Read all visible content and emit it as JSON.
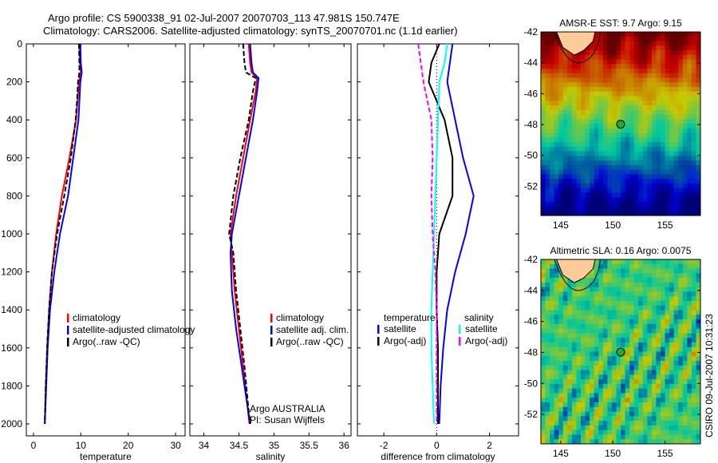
{
  "title_line1": "Argo profile: CS 5900338_91 02-Jul-2007 20070703_113 47.981S 150.747E",
  "title_line2": "Climatology: CARS2006. Satellite-adjusted climatology: synTS_20070701.nc (1.1d earlier)",
  "side_stamp": "CSIRO 09-Jul-2007 10:31:23",
  "argo_note": [
    "Argo AUSTRALIA",
    "PI: Susan Wijffels"
  ],
  "colors": {
    "red": "#ff0000",
    "blue": "#0000ff",
    "black": "#000000",
    "cyan": "#00ffff",
    "magenta": "#ff00ff",
    "land": "#ffcc99"
  },
  "chart_data": [
    {
      "type": "line",
      "xlabel": "temperature",
      "ylabel": "",
      "xlim": [
        -1.5,
        32
      ],
      "ylim": [
        2000,
        0
      ],
      "xticks": [
        0,
        10,
        20,
        30
      ],
      "yticks": [
        0,
        200,
        400,
        600,
        800,
        1000,
        1200,
        1400,
        1600,
        1800,
        2000
      ],
      "legend": [
        "climatology",
        "satellite-adjusted climatology",
        "Argo(..raw -QC)"
      ],
      "depth": [
        0,
        100,
        150,
        200,
        300,
        400,
        600,
        800,
        1000,
        1200,
        1400,
        1600,
        1800,
        2000
      ],
      "series": [
        {
          "name": "climatology",
          "color": "red",
          "values": [
            9.7,
            9.8,
            10.0,
            9.6,
            9.3,
            9.0,
            7.6,
            6.0,
            4.8,
            3.9,
            3.3,
            2.9,
            2.6,
            2.4
          ]
        },
        {
          "name": "satellite-adjusted climatology",
          "color": "blue",
          "values": [
            9.9,
            10.0,
            10.2,
            9.9,
            9.7,
            9.5,
            8.4,
            7.3,
            5.6,
            4.4,
            3.5,
            3.0,
            2.7,
            2.4
          ]
        },
        {
          "name": "Argo(..raw -QC)",
          "color": "black",
          "values": [
            9.6,
            9.7,
            9.7,
            9.4,
            9.2,
            8.9,
            7.9,
            6.5,
            5.0,
            3.9,
            3.3,
            2.9,
            2.6,
            2.4
          ]
        }
      ]
    },
    {
      "type": "line",
      "xlabel": "salinity",
      "xlim": [
        33.8,
        36.1
      ],
      "ylim": [
        2000,
        0
      ],
      "xticks": [
        34,
        34.5,
        35,
        35.5,
        36
      ],
      "legend": [
        "climatology",
        "satellite adj. clim.",
        "Argo(..raw -QC)"
      ],
      "depth": [
        0,
        100,
        150,
        180,
        250,
        400,
        600,
        800,
        1000,
        1100,
        1300,
        1500,
        1700,
        1900,
        2000
      ],
      "series": [
        {
          "name": "climatology",
          "color": "red",
          "values": [
            34.64,
            34.66,
            34.68,
            34.76,
            34.74,
            34.66,
            34.56,
            34.46,
            34.38,
            34.4,
            34.44,
            34.5,
            34.56,
            34.62,
            34.65
          ]
        },
        {
          "name": "satellite adj. clim.",
          "color": "blue",
          "values": [
            34.66,
            34.68,
            34.7,
            34.78,
            34.76,
            34.7,
            34.6,
            34.5,
            34.4,
            34.38,
            34.4,
            34.46,
            34.54,
            34.62,
            34.66
          ]
        },
        {
          "name": "Argo(..raw -QC)",
          "color": "black",
          "values": [
            34.56,
            34.58,
            34.6,
            34.74,
            34.7,
            34.64,
            34.52,
            34.42,
            34.36,
            34.42,
            34.46,
            34.52,
            34.58,
            34.63,
            34.66
          ]
        }
      ]
    },
    {
      "type": "line",
      "xlabel": "difference from climatology",
      "xlim": [
        -3,
        3.1
      ],
      "ylim": [
        2000,
        0
      ],
      "xticks": [
        -2,
        0,
        2
      ],
      "legend_headers": [
        "temperature",
        "salinity"
      ],
      "legend": [
        "satellite",
        "Argo(-adj)",
        "satellite",
        "Argo(-adj)"
      ],
      "depth": [
        0,
        100,
        200,
        400,
        600,
        800,
        1000,
        1200,
        1400,
        1600,
        1800,
        2000
      ],
      "series": [
        {
          "name": "temperature satellite",
          "color": "blue",
          "values": [
            0.6,
            0.5,
            0.4,
            0.7,
            1.0,
            1.4,
            1.1,
            0.7,
            0.4,
            0.25,
            0.15,
            0.1
          ]
        },
        {
          "name": "temperature Argo(-adj)",
          "color": "black",
          "values": [
            0.1,
            -0.2,
            -0.3,
            0.3,
            0.6,
            0.6,
            0.1,
            0.0,
            0.0,
            0.05,
            0.05,
            0.05
          ]
        },
        {
          "name": "salinity satellite",
          "color": "cyan",
          "values": [
            0.4,
            0.3,
            0.1,
            0.05,
            0.0,
            -0.05,
            -0.1,
            -0.15,
            -0.2,
            -0.2,
            -0.15,
            -0.1
          ]
        },
        {
          "name": "salinity Argo(-adj)",
          "color": "magenta",
          "values": [
            -0.7,
            -0.6,
            -0.5,
            -0.2,
            -0.15,
            -0.2,
            -0.15,
            -0.05,
            0.0,
            0.0,
            0.0,
            0.0
          ]
        }
      ]
    },
    {
      "type": "heatmap",
      "title": "AMSR-E SST: 9.7 Argo: 9.15",
      "xlim": [
        143.1,
        158.4
      ],
      "ylim": [
        -42,
        -53.9
      ],
      "xticks": [
        145,
        150,
        155
      ],
      "yticks": [
        -42,
        -44,
        -46,
        -48,
        -50,
        -52
      ],
      "argo_position": [
        150.747,
        -47.981
      ]
    },
    {
      "type": "heatmap",
      "title": "Altimetric SLA: 0.16 Argo: 0.0075",
      "xlim": [
        143.1,
        158.4
      ],
      "ylim": [
        -42,
        -53.9
      ],
      "xticks": [
        145,
        150,
        155
      ],
      "yticks": [
        -42,
        -44,
        -46,
        -48,
        -50,
        -52
      ],
      "argo_position": [
        150.747,
        -47.981
      ]
    }
  ]
}
